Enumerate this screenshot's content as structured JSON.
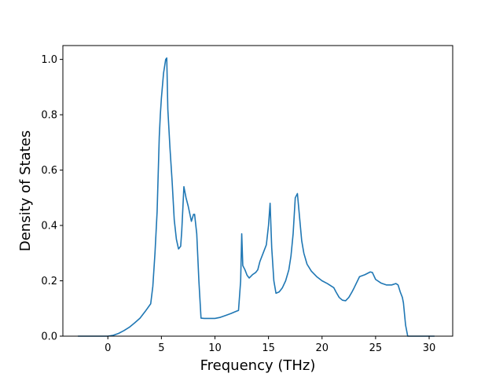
{
  "chart_data": {
    "type": "line",
    "title": "",
    "xlabel": "Frequency (THz)",
    "ylabel": "Density of States",
    "xlim": [
      -4.2,
      32.2
    ],
    "ylim": [
      0.0,
      1.05
    ],
    "xticks": [
      0,
      5,
      10,
      15,
      20,
      25,
      30
    ],
    "xtick_labels": [
      "0",
      "5",
      "10",
      "15",
      "20",
      "25",
      "30"
    ],
    "yticks": [
      0.0,
      0.2,
      0.4,
      0.6,
      0.8,
      1.0
    ],
    "ytick_labels": [
      "0.0",
      "0.2",
      "0.4",
      "0.6",
      "0.8",
      "1.0"
    ],
    "grid": false,
    "series": [
      {
        "color": "#1f77b4",
        "x": [
          -2.8,
          -1.0,
          0.0,
          0.5,
          1.0,
          1.5,
          2.0,
          2.5,
          3.0,
          3.5,
          4.0,
          4.2,
          4.4,
          4.6,
          4.8,
          4.9,
          5.0,
          5.2,
          5.4,
          5.5,
          5.6,
          5.8,
          6.0,
          6.2,
          6.4,
          6.6,
          6.8,
          6.9,
          7.0,
          7.1,
          7.2,
          7.3,
          7.5,
          7.8,
          8.0,
          8.1,
          8.3,
          8.5,
          8.7,
          9.0,
          9.5,
          10.0,
          10.5,
          11.0,
          11.5,
          12.0,
          12.2,
          12.4,
          12.5,
          12.6,
          12.8,
          13.0,
          13.2,
          13.5,
          13.8,
          14.0,
          14.2,
          14.5,
          14.8,
          15.0,
          15.15,
          15.3,
          15.5,
          15.7,
          16.0,
          16.3,
          16.6,
          16.9,
          17.1,
          17.3,
          17.5,
          17.7,
          17.9,
          18.1,
          18.3,
          18.6,
          19.0,
          19.5,
          20.0,
          20.5,
          20.9,
          21.1,
          21.3,
          21.6,
          21.9,
          22.2,
          22.5,
          22.8,
          23.0,
          23.5,
          24.0,
          24.5,
          24.7,
          25.0,
          25.5,
          26.0,
          26.5,
          26.9,
          27.1,
          27.3,
          27.5,
          27.6,
          27.7,
          27.8,
          28.0,
          29.0,
          30.5
        ],
        "y": [
          0.0,
          0.0,
          0.0,
          0.003,
          0.01,
          0.02,
          0.032,
          0.048,
          0.065,
          0.09,
          0.117,
          0.18,
          0.3,
          0.45,
          0.72,
          0.8,
          0.86,
          0.95,
          1.0,
          1.005,
          0.82,
          0.68,
          0.56,
          0.42,
          0.35,
          0.315,
          0.325,
          0.38,
          0.46,
          0.54,
          0.52,
          0.5,
          0.47,
          0.415,
          0.44,
          0.44,
          0.37,
          0.2,
          0.065,
          0.064,
          0.064,
          0.064,
          0.068,
          0.075,
          0.082,
          0.09,
          0.093,
          0.2,
          0.37,
          0.255,
          0.24,
          0.22,
          0.21,
          0.222,
          0.23,
          0.24,
          0.27,
          0.3,
          0.33,
          0.4,
          0.48,
          0.32,
          0.2,
          0.155,
          0.16,
          0.175,
          0.2,
          0.24,
          0.29,
          0.37,
          0.5,
          0.515,
          0.43,
          0.345,
          0.3,
          0.26,
          0.235,
          0.215,
          0.2,
          0.19,
          0.18,
          0.175,
          0.16,
          0.14,
          0.13,
          0.128,
          0.14,
          0.16,
          0.175,
          0.215,
          0.222,
          0.232,
          0.23,
          0.205,
          0.192,
          0.185,
          0.185,
          0.19,
          0.185,
          0.16,
          0.14,
          0.12,
          0.08,
          0.04,
          0.0,
          0.0,
          0.0
        ]
      }
    ]
  }
}
